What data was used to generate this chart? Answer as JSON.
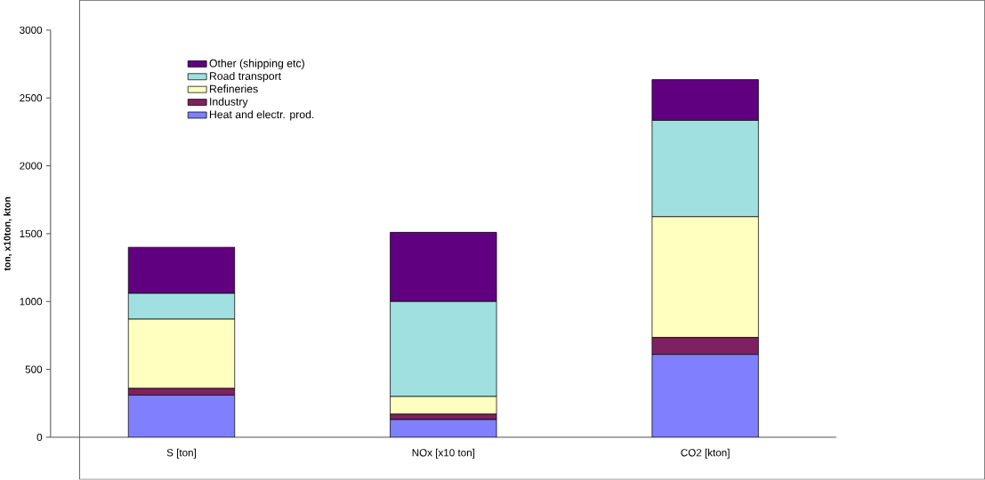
{
  "chart_data": {
    "type": "bar",
    "stacked": true,
    "ylabel": "ton, x10ton, kton",
    "categories": [
      "S [ton]",
      "NOx [x10 ton]",
      "CO2 [kton]"
    ],
    "series": [
      {
        "name": "Heat and electr. prod.",
        "color": "#8080ff",
        "values": [
          310,
          130,
          610
        ]
      },
      {
        "name": "Industry",
        "color": "#802060",
        "values": [
          50,
          40,
          125
        ]
      },
      {
        "name": "Refineries",
        "color": "#ffffc0",
        "values": [
          510,
          130,
          890
        ]
      },
      {
        "name": "Road transport",
        "color": "#a0e0e0",
        "values": [
          190,
          700,
          710
        ]
      },
      {
        "name": "Other (shipping etc)",
        "color": "#600080",
        "values": [
          340,
          510,
          300
        ]
      }
    ],
    "ylim": [
      0,
      3000
    ],
    "yticks": [
      0,
      500,
      1000,
      1500,
      2000,
      2500,
      3000
    ],
    "grid": false,
    "legend": "top left"
  }
}
